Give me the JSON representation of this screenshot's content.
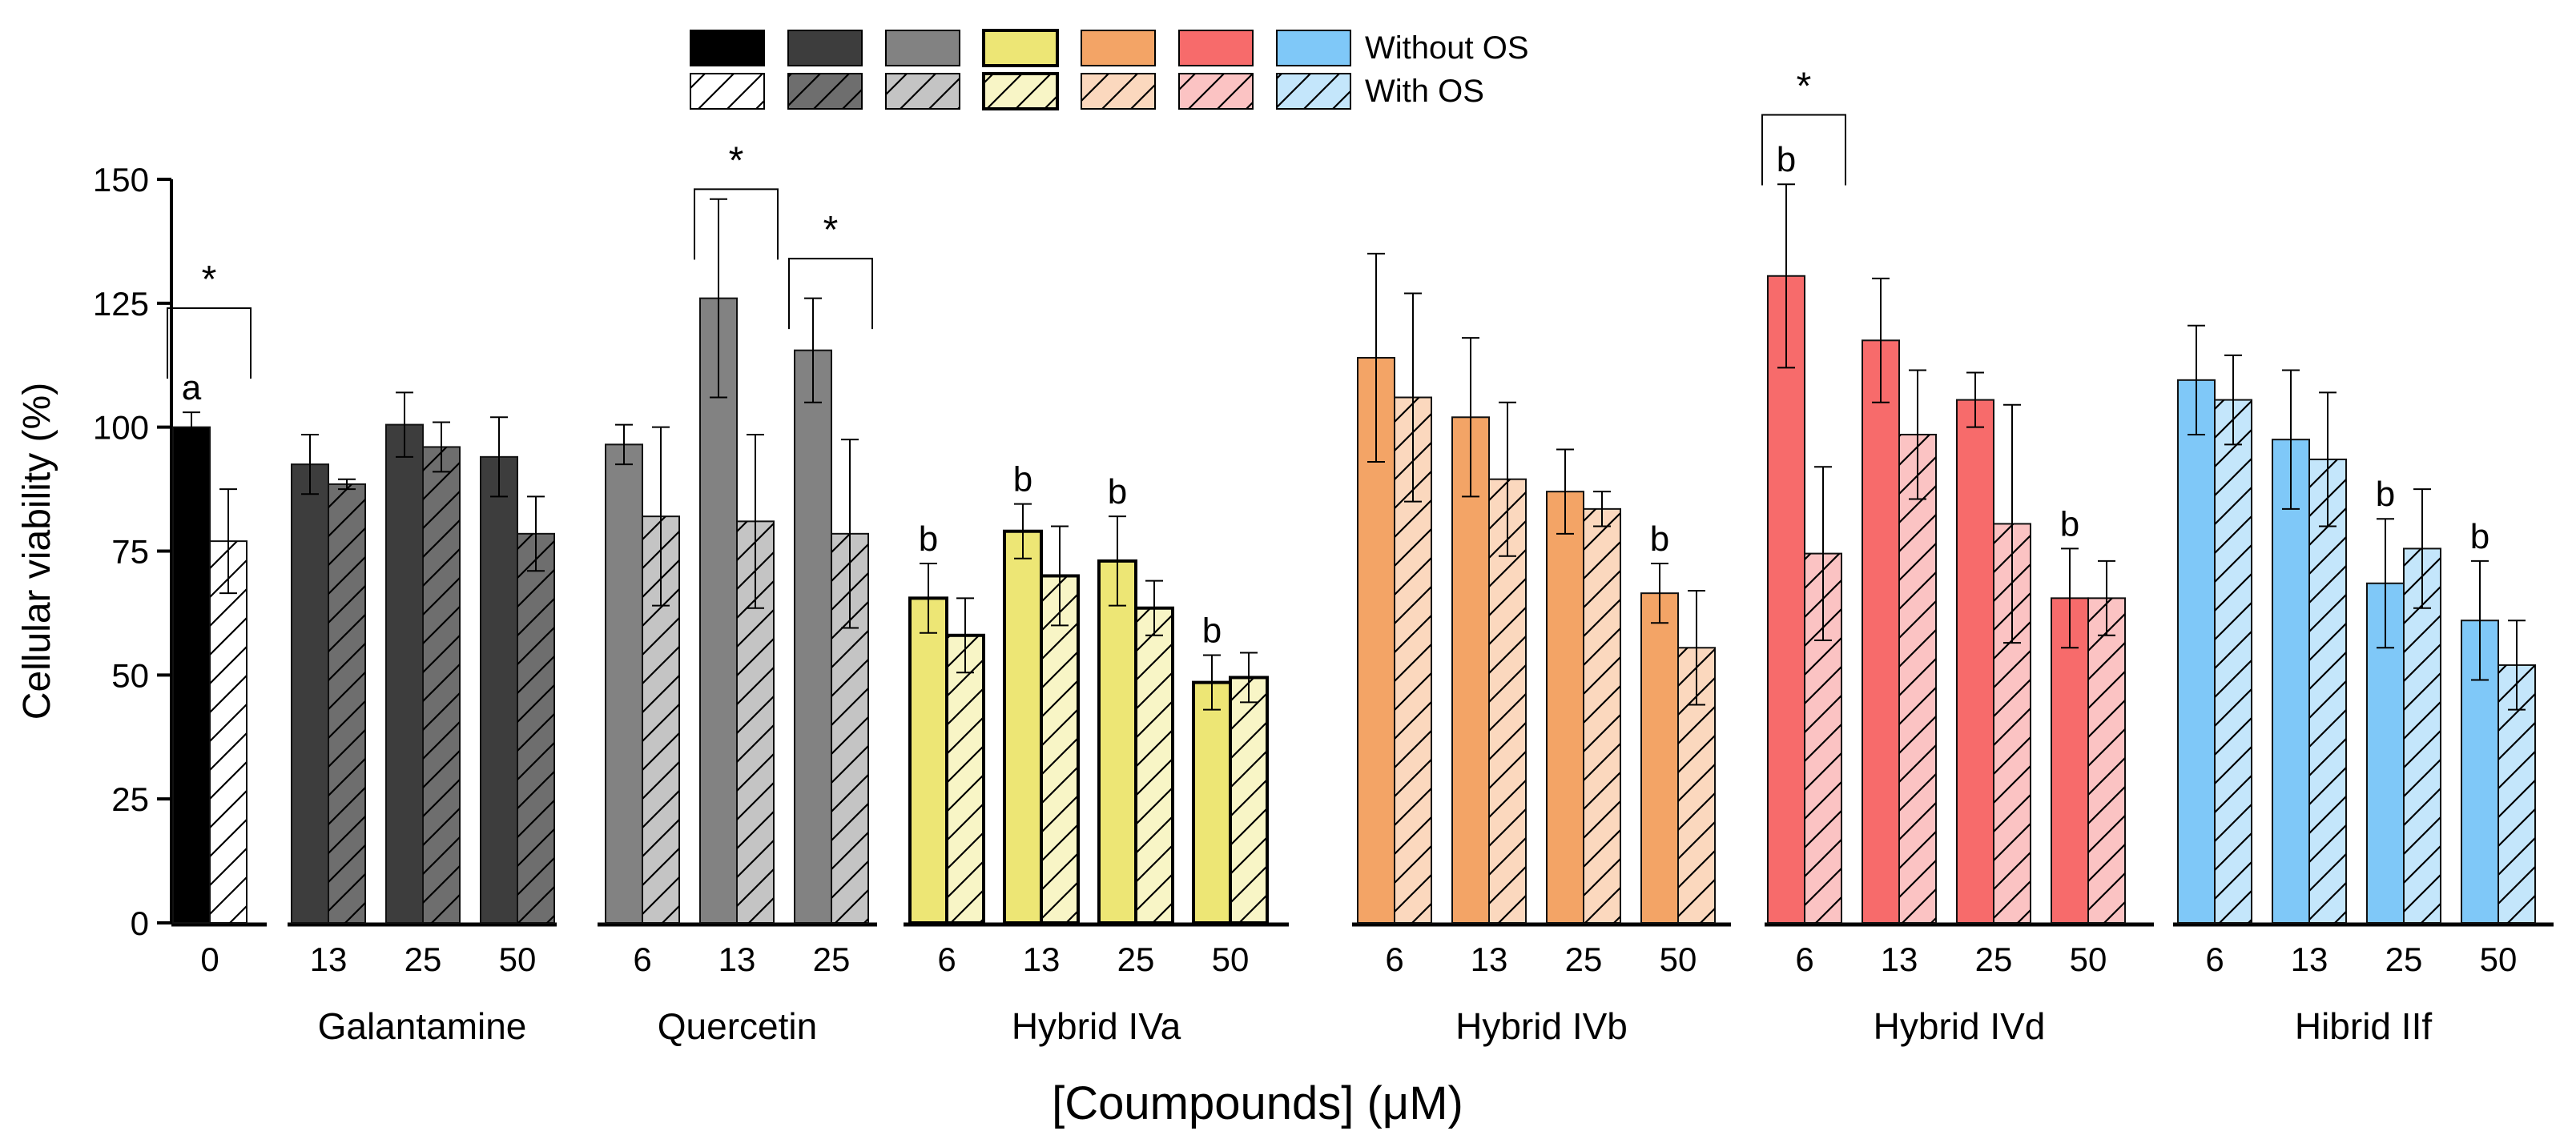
{
  "chart_data": {
    "type": "bar",
    "xlabel": "[Coumpounds] (μM)",
    "ylabel": "Cellular viability (%)",
    "ylim": [
      0,
      150
    ],
    "yticks": [
      0,
      25,
      50,
      75,
      100,
      125,
      150
    ],
    "legend": {
      "placement": "top-center",
      "without_label": "Without OS",
      "with_label": "With OS"
    },
    "groups": [
      {
        "name": "",
        "solid": "#000000",
        "light": "#ffffff",
        "bars": [
          {
            "x": "0",
            "without": 100,
            "without_err": 3,
            "with": 77,
            "with_err": 10.5,
            "letter": "a"
          }
        ]
      },
      {
        "name": "Galantamine",
        "solid": "#3d3d3d",
        "light": "#6e6e6e",
        "bars": [
          {
            "x": "13",
            "without": 92.5,
            "without_err": 6,
            "with": 88.5,
            "with_err": 1,
            "letter": ""
          },
          {
            "x": "25",
            "without": 100.5,
            "without_err": 6.5,
            "with": 96,
            "with_err": 5,
            "letter": ""
          },
          {
            "x": "50",
            "without": 94,
            "without_err": 8,
            "with": 78.5,
            "with_err": 7.5,
            "letter": ""
          }
        ]
      },
      {
        "name": "Quercetin",
        "solid": "#828282",
        "light": "#c4c4c4",
        "bars": [
          {
            "x": "6",
            "without": 96.5,
            "without_err": 4,
            "with": 82,
            "with_err": 18,
            "letter": ""
          },
          {
            "x": "13",
            "without": 126,
            "without_err": 20,
            "with": 81,
            "with_err": 17.5,
            "letter": ""
          },
          {
            "x": "25",
            "without": 115.5,
            "without_err": 10.5,
            "with": 78.5,
            "with_err": 19,
            "letter": ""
          }
        ]
      },
      {
        "name": "Hybrid IVa",
        "solid": "#ede675",
        "light": "#f8f5c6",
        "bars": [
          {
            "x": "6",
            "without": 65.5,
            "without_err": 7,
            "with": 58,
            "with_err": 7.5,
            "letter": "b"
          },
          {
            "x": "13",
            "without": 79,
            "without_err": 5.5,
            "with": 70,
            "with_err": 10,
            "letter": "b"
          },
          {
            "x": "25",
            "without": 73,
            "without_err": 9,
            "with": 63.5,
            "with_err": 5.5,
            "letter": "b"
          },
          {
            "x": "50",
            "without": 48.5,
            "without_err": 5.5,
            "with": 49.5,
            "with_err": 5,
            "letter": "b"
          }
        ]
      },
      {
        "name": "Hybrid IVb",
        "solid": "#f3a466",
        "light": "#fbd8be",
        "bars": [
          {
            "x": "6",
            "without": 114,
            "without_err": 21,
            "with": 106,
            "with_err": 21,
            "letter": ""
          },
          {
            "x": "13",
            "without": 102,
            "without_err": 16,
            "with": 89.5,
            "with_err": 15.5,
            "letter": ""
          },
          {
            "x": "25",
            "without": 87,
            "without_err": 8.5,
            "with": 83.5,
            "with_err": 3.5,
            "letter": ""
          },
          {
            "x": "50",
            "without": 66.5,
            "without_err": 6,
            "with": 55.5,
            "with_err": 11.5,
            "letter": "b"
          }
        ]
      },
      {
        "name": "Hybrid IVd",
        "solid": "#f76b6b",
        "light": "#fbc3c3",
        "bars": [
          {
            "x": "6",
            "without": 130.5,
            "without_err": 18.5,
            "with": 74.5,
            "with_err": 17.5,
            "letter": "b"
          },
          {
            "x": "13",
            "without": 117.5,
            "without_err": 12.5,
            "with": 98.5,
            "with_err": 13,
            "letter": ""
          },
          {
            "x": "25",
            "without": 105.5,
            "without_err": 5.5,
            "with": 80.5,
            "with_err": 24,
            "letter": ""
          },
          {
            "x": "50",
            "without": 65.5,
            "without_err": 10,
            "with": 65.5,
            "with_err": 7.5,
            "letter": "b"
          }
        ]
      },
      {
        "name": "Hibrid IIf",
        "solid": "#7fc8f8",
        "light": "#c4e6fb",
        "bars": [
          {
            "x": "6",
            "without": 109.5,
            "without_err": 11,
            "with": 105.5,
            "with_err": 9,
            "letter": ""
          },
          {
            "x": "13",
            "without": 97.5,
            "without_err": 14,
            "with": 93.5,
            "with_err": 13.5,
            "letter": ""
          },
          {
            "x": "25",
            "without": 68.5,
            "without_err": 13,
            "with": 75.5,
            "with_err": 12,
            "letter": "b"
          },
          {
            "x": "50",
            "without": 61,
            "without_err": 12,
            "with": 52,
            "with_err": 9,
            "letter": "b"
          }
        ]
      }
    ],
    "significance": [
      {
        "group": 0,
        "from_bar": 0,
        "to_bar": 0,
        "level": 124,
        "label": "*"
      },
      {
        "group": 2,
        "from_bar": 1,
        "to_bar": 1,
        "level": 148,
        "label": "*"
      },
      {
        "group": 2,
        "from_bar": 2,
        "to_bar": 2,
        "level": 134,
        "label": "*"
      },
      {
        "group": 5,
        "from_bar": 0,
        "to_bar": 0,
        "level": 163,
        "label": "*"
      }
    ]
  }
}
